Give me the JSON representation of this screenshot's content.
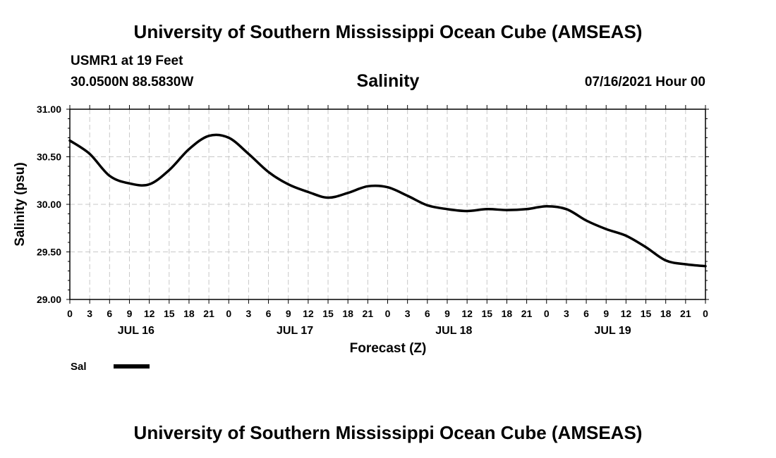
{
  "header": {
    "title": "University of Southern Mississippi Ocean Cube (AMSEAS)",
    "station": "USMR1 at 19 Feet",
    "coordinates": "30.0500N  88.5830W",
    "parameter": "Salinity",
    "datetime": "07/16/2021 Hour 00"
  },
  "footer": {
    "title": "University of Southern Mississippi Ocean Cube (AMSEAS)"
  },
  "chart_data": {
    "type": "line",
    "title": "Salinity",
    "xlabel": "Forecast (Z)",
    "ylabel": "Salinity (psu)",
    "ylim": [
      29.0,
      31.0
    ],
    "xlim": [
      0,
      96
    ],
    "grid": true,
    "y_ticks": [
      "29.00",
      "29.50",
      "30.00",
      "30.50",
      "31.00"
    ],
    "x_tick_labels": [
      "0",
      "3",
      "6",
      "9",
      "12",
      "15",
      "18",
      "21",
      "0",
      "3",
      "6",
      "9",
      "12",
      "15",
      "18",
      "21",
      "0",
      "3",
      "6",
      "9",
      "12",
      "15",
      "18",
      "21",
      "0",
      "3",
      "6",
      "9",
      "12",
      "15",
      "18",
      "21",
      "0"
    ],
    "day_labels": [
      "JUL 16",
      "JUL 17",
      "JUL 18",
      "JUL 19"
    ],
    "legend": {
      "placement": "bottom-left",
      "label": "Sal"
    },
    "series": [
      {
        "name": "Sal",
        "color": "#000000",
        "x": [
          0,
          3,
          6,
          9,
          12,
          15,
          18,
          21,
          24,
          27,
          30,
          33,
          36,
          39,
          42,
          45,
          48,
          51,
          54,
          57,
          60,
          63,
          66,
          69,
          72,
          75,
          78,
          81,
          84,
          87,
          90,
          93,
          96
        ],
        "values": [
          30.67,
          30.53,
          30.3,
          30.22,
          30.21,
          30.36,
          30.58,
          30.72,
          30.7,
          30.53,
          30.34,
          30.21,
          30.13,
          30.07,
          30.12,
          30.19,
          30.18,
          30.09,
          29.99,
          29.95,
          29.93,
          29.95,
          29.94,
          29.95,
          29.98,
          29.95,
          29.83,
          29.74,
          29.67,
          29.55,
          29.41,
          29.37,
          29.35
        ]
      }
    ]
  }
}
